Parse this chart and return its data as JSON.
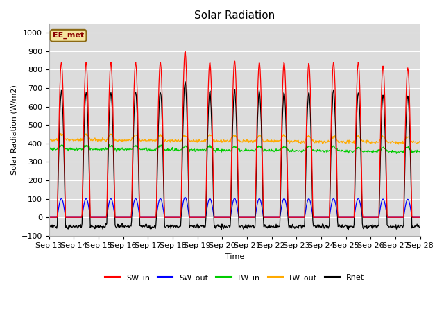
{
  "title": "Solar Radiation",
  "ylabel": "Solar Radiation (W/m2)",
  "xlabel": "Time",
  "background_color": "#dcdcdc",
  "annotation_text": "EE_met",
  "annotation_bg": "#f5e6a0",
  "annotation_border": "#8b6914",
  "tick_labels": [
    "Sep 13",
    "Sep 14",
    "Sep 15",
    "Sep 16",
    "Sep 17",
    "Sep 18",
    "Sep 19",
    "Sep 20",
    "Sep 21",
    "Sep 22",
    "Sep 23",
    "Sep 24",
    "Sep 25",
    "Sep 26",
    "Sep 27",
    "Sep 28"
  ],
  "legend": [
    {
      "label": "SW_in",
      "color": "#ff0000"
    },
    {
      "label": "SW_out",
      "color": "#0000ff"
    },
    {
      "label": "LW_in",
      "color": "#00cc00"
    },
    {
      "label": "LW_out",
      "color": "#ffaa00"
    },
    {
      "label": "Rnet",
      "color": "#000000"
    }
  ]
}
